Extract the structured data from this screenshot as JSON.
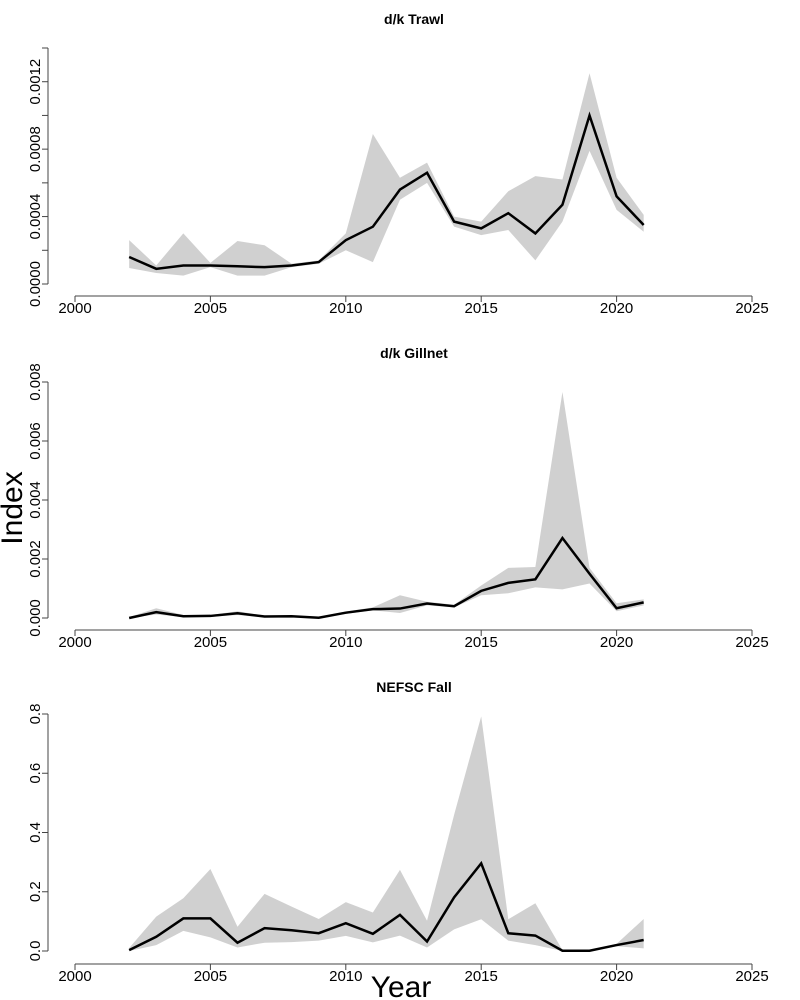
{
  "figure": {
    "ylabel": "Index",
    "xlabel": "Year"
  },
  "chart_data": [
    {
      "type": "area",
      "title": "d/k Trawl",
      "xlabel": "Year",
      "ylabel": "Index",
      "xlim": [
        2000,
        2025
      ],
      "ylim": [
        0,
        0.0014
      ],
      "xticks": [
        2000,
        2005,
        2010,
        2015,
        2020,
        2025
      ],
      "xtick_labels": [
        "2000",
        "2005",
        "2010",
        "2015",
        "2020",
        "2025"
      ],
      "yticks": [
        0.0,
        0.0002,
        0.0004,
        0.0006,
        0.0008,
        0.001,
        0.0012,
        0.0014
      ],
      "ytick_labels": [
        "0.0000",
        "",
        "0.0004",
        "",
        "0.0008",
        "",
        "0.0012",
        ""
      ],
      "grid": false,
      "x": [
        2002,
        2003,
        2004,
        2005,
        2006,
        2007,
        2008,
        2009,
        2010,
        2011,
        2012,
        2013,
        2014,
        2015,
        2016,
        2017,
        2018,
        2019,
        2020,
        2021
      ],
      "series": [
        {
          "name": "Index",
          "values": [
            0.00016,
            9e-05,
            0.00011,
            0.00011,
            0.000105,
            0.0001,
            0.00011,
            0.00013,
            0.00026,
            0.00034,
            0.00056,
            0.00066,
            0.00037,
            0.00033,
            0.00042,
            0.0003,
            0.00047,
            0.001,
            0.00052,
            0.00035
          ]
        },
        {
          "name": "Upper CI",
          "values": [
            0.00026,
            0.00011,
            0.0003,
            0.000125,
            0.000255,
            0.00023,
            0.00012,
            0.00014,
            0.0003,
            0.00089,
            0.00063,
            0.00072,
            0.0004,
            0.00037,
            0.00055,
            0.00064,
            0.00062,
            0.00125,
            0.00063,
            0.00041
          ]
        },
        {
          "name": "Lower CI",
          "values": [
            9.5e-05,
            6.5e-05,
            5e-05,
            0.0001,
            5e-05,
            5e-05,
            0.0001,
            0.00012,
            0.0002,
            0.00013,
            0.0005,
            0.0006,
            0.00034,
            0.00029,
            0.00032,
            0.00014,
            0.00037,
            0.00079,
            0.00044,
            0.00031
          ]
        }
      ]
    },
    {
      "type": "area",
      "title": "d/k Gillnet",
      "xlabel": "Year",
      "ylabel": "Index",
      "xlim": [
        2000,
        2025
      ],
      "ylim": [
        0,
        0.008
      ],
      "xticks": [
        2000,
        2005,
        2010,
        2015,
        2020,
        2025
      ],
      "xtick_labels": [
        "2000",
        "2005",
        "2010",
        "2015",
        "2020",
        "2025"
      ],
      "yticks": [
        0.0,
        0.002,
        0.004,
        0.006,
        0.008
      ],
      "ytick_labels": [
        "0.000",
        "0.002",
        "0.004",
        "0.006",
        "0.008"
      ],
      "grid": false,
      "x": [
        2002,
        2003,
        2004,
        2005,
        2006,
        2007,
        2008,
        2009,
        2010,
        2011,
        2012,
        2013,
        2014,
        2015,
        2016,
        2017,
        2018,
        2019,
        2020,
        2021
      ],
      "series": [
        {
          "name": "Index",
          "values": [
            0.0,
            0.0002,
            6e-05,
            7e-05,
            0.00016,
            5e-05,
            6e-05,
            1e-05,
            0.00018,
            0.0003,
            0.00032,
            0.00049,
            0.0004,
            0.00092,
            0.00119,
            0.00131,
            0.00271,
            0.0015,
            0.00033,
            0.00053
          ]
        },
        {
          "name": "Upper CI",
          "values": [
            3e-05,
            0.00033,
            0.0001,
            0.0001,
            0.00023,
            8e-05,
            9e-05,
            4e-05,
            0.00022,
            0.00036,
            0.00077,
            0.00055,
            0.00045,
            0.0011,
            0.0017,
            0.00173,
            0.00766,
            0.0017,
            0.0005,
            0.00063
          ]
        },
        {
          "name": "Lower CI",
          "values": [
            0.0,
            0.00012,
            3e-05,
            4e-05,
            0.0001,
            2e-05,
            3e-05,
            0.0,
            0.00014,
            0.00026,
            0.00017,
            0.00043,
            0.00036,
            0.00077,
            0.00084,
            0.00104,
            0.00097,
            0.00117,
            0.00023,
            0.00043
          ]
        }
      ]
    },
    {
      "type": "area",
      "title": "NEFSC Fall",
      "xlabel": "Year",
      "ylabel": "Index",
      "xlim": [
        2000,
        2025
      ],
      "ylim": [
        0,
        0.8
      ],
      "xticks": [
        2000,
        2005,
        2010,
        2015,
        2020,
        2025
      ],
      "xtick_labels": [
        "2000",
        "2005",
        "2010",
        "2015",
        "2020",
        "2025"
      ],
      "yticks": [
        0.0,
        0.2,
        0.4,
        0.6,
        0.8
      ],
      "ytick_labels": [
        "0.0",
        "0.2",
        "0.4",
        "0.6",
        "0.8"
      ],
      "grid": false,
      "x": [
        2002,
        2003,
        2004,
        2005,
        2006,
        2007,
        2008,
        2009,
        2010,
        2011,
        2012,
        2013,
        2014,
        2015,
        2016,
        2017,
        2018,
        2019,
        2020,
        2021
      ],
      "series": [
        {
          "name": "Index",
          "values": [
            0.003,
            0.048,
            0.11,
            0.11,
            0.028,
            0.077,
            0.07,
            0.06,
            0.094,
            0.058,
            0.122,
            0.032,
            0.181,
            0.296,
            0.06,
            0.052,
            0.001,
            0.001,
            0.02,
            0.037
          ]
        },
        {
          "name": "Upper CI",
          "values": [
            0.01,
            0.116,
            0.178,
            0.277,
            0.082,
            0.193,
            0.15,
            0.108,
            0.165,
            0.13,
            0.274,
            0.102,
            0.46,
            0.792,
            0.107,
            0.161,
            0.003,
            0.003,
            0.024,
            0.108
          ]
        },
        {
          "name": "Lower CI",
          "values": [
            0.0,
            0.02,
            0.068,
            0.046,
            0.012,
            0.028,
            0.03,
            0.035,
            0.051,
            0.029,
            0.052,
            0.012,
            0.073,
            0.107,
            0.035,
            0.02,
            0.0,
            0.0,
            0.016,
            0.009
          ]
        }
      ]
    }
  ]
}
